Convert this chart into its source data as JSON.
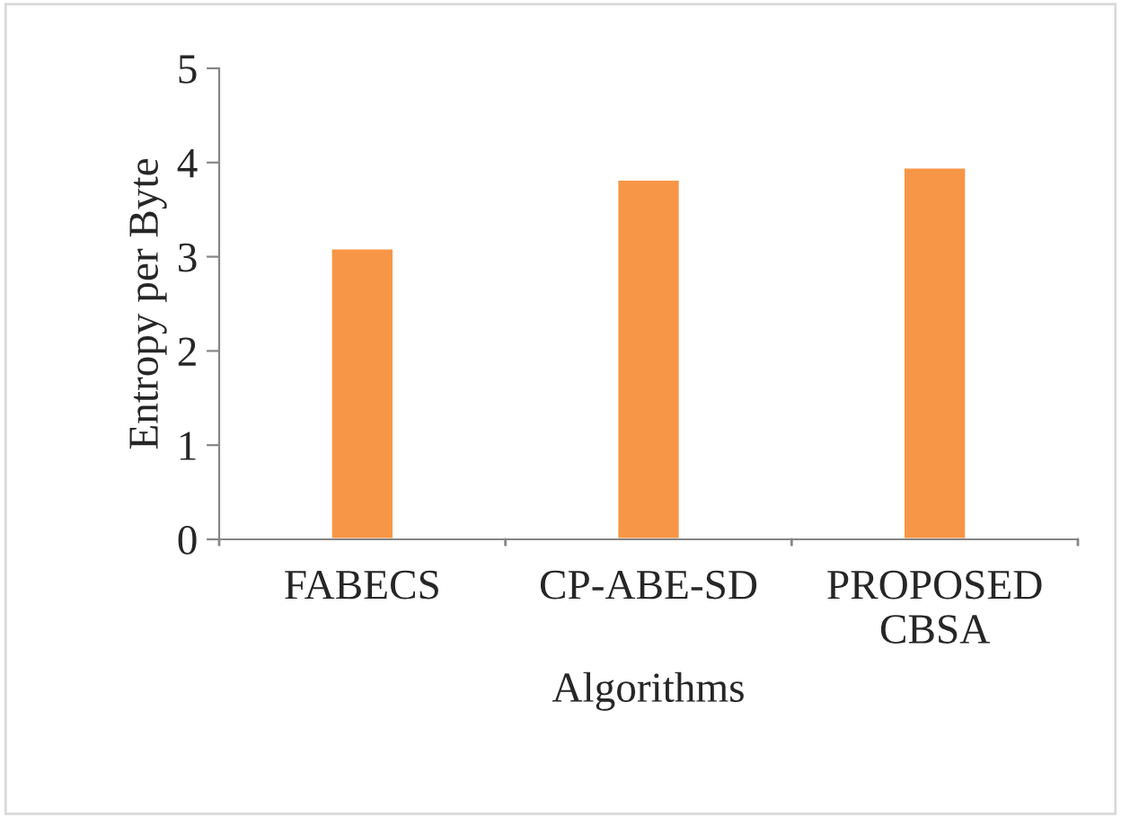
{
  "chart_data": {
    "type": "bar",
    "xlabel": "Algorithms",
    "ylabel": "Entropy per Byte",
    "categories": [
      "FABECS",
      "CP-ABE-SD",
      "PROPOSED\nCBSA"
    ],
    "values": [
      3.09,
      3.82,
      3.95
    ],
    "color": "#f79646",
    "ylim": [
      0,
      5
    ],
    "yticks": [
      0,
      1,
      2,
      3,
      4,
      5
    ],
    "grid": false
  }
}
